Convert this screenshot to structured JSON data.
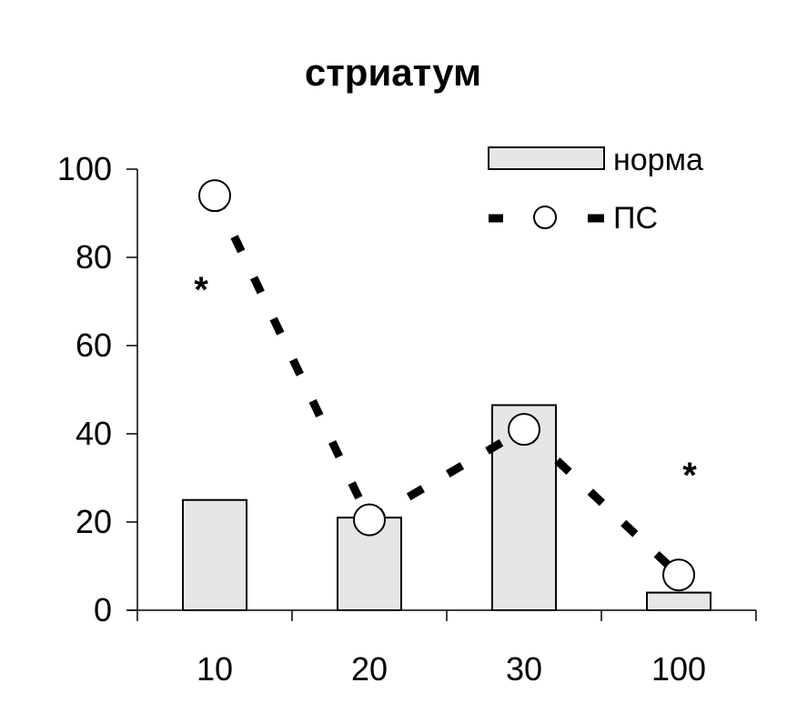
{
  "colors": {
    "bar_fill": "#e6e6e6",
    "stroke": "#000000",
    "marker_fill": "#ffffff"
  },
  "chart_data": {
    "type": "bar",
    "title": "стриатум",
    "xlabel": "",
    "ylabel": "",
    "categories": [
      "10",
      "20",
      "30",
      "100"
    ],
    "ylim": [
      0,
      100
    ],
    "yticks": [
      0,
      20,
      40,
      60,
      80,
      100
    ],
    "grid": false,
    "legend_position": "top-right",
    "series": [
      {
        "name": "норма",
        "type": "bar",
        "values": [
          25,
          21,
          46.5,
          4
        ]
      },
      {
        "name": "ПС",
        "type": "line-dashed-circle-markers",
        "values": [
          94,
          20.5,
          41,
          8
        ]
      }
    ],
    "annotations": [
      {
        "text": "*",
        "category": "10",
        "y": 74
      },
      {
        "text": "*",
        "category": "100",
        "y": 32
      }
    ]
  }
}
